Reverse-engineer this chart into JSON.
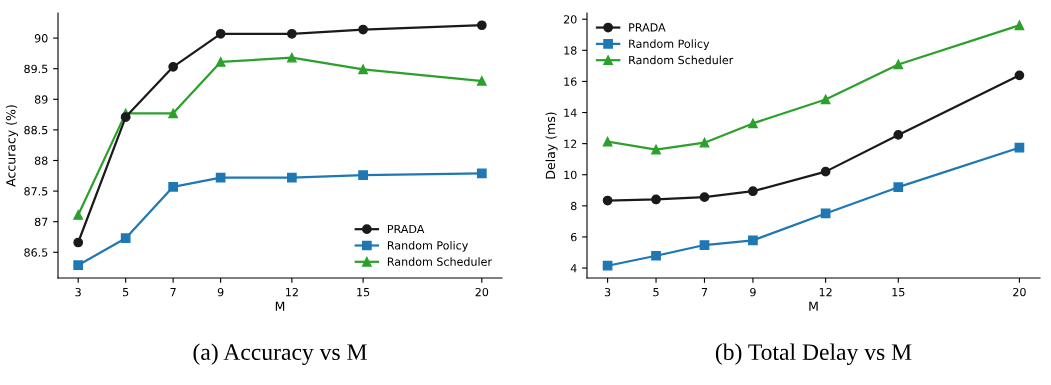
{
  "chart_data": [
    {
      "type": "line",
      "xlabel": "M",
      "ylabel": "Accuracy (%)",
      "x": [
        3,
        5,
        7,
        9,
        12,
        15,
        20
      ],
      "xlim": [
        2.15,
        20.85
      ],
      "xticks": [
        3,
        5,
        7,
        9,
        12,
        15,
        20
      ],
      "ylim": [
        86.08,
        90.41
      ],
      "yticks": [
        {
          "value": 86.5,
          "label": "86.5"
        },
        {
          "value": 87,
          "label": "87"
        },
        {
          "value": 87.5,
          "label": "87.5"
        },
        {
          "value": 88,
          "label": "88"
        },
        {
          "value": 88.5,
          "label": "88.5"
        },
        {
          "value": 89,
          "label": "89"
        },
        {
          "value": 89.5,
          "label": "89.5"
        },
        {
          "value": 90,
          "label": "90"
        }
      ],
      "grid": false,
      "legend": "bottom right",
      "annotations": [
        "(a) Accuracy vs M"
      ],
      "series": [
        {
          "name": "PRADA",
          "color": "#1a1a1a",
          "marker": "circle",
          "values": [
            86.66,
            88.71,
            89.53,
            90.07,
            90.07,
            90.14,
            90.21
          ]
        },
        {
          "name": "Random Policy",
          "color": "#1f77b4",
          "marker": "square",
          "values": [
            86.29,
            86.73,
            87.57,
            87.72,
            87.72,
            87.76,
            87.79
          ]
        },
        {
          "name": "Random Scheduler",
          "color": "#2ca02c",
          "marker": "triangle",
          "values": [
            87.11,
            88.77,
            88.77,
            89.61,
            89.68,
            89.49,
            89.3
          ]
        }
      ]
    },
    {
      "type": "line",
      "xlabel": "M",
      "ylabel": "Delay (ms)",
      "x": [
        3,
        5,
        7,
        9,
        12,
        15,
        20
      ],
      "xlim": [
        2.15,
        20.85
      ],
      "xticks": [
        3,
        5,
        7,
        9,
        12,
        15,
        20
      ],
      "ylim": [
        3.36,
        20.4
      ],
      "yticks": [
        4,
        6,
        8,
        10,
        12,
        14,
        16,
        18,
        20
      ],
      "grid": false,
      "legend": "top left",
      "annotations": [
        "(b) Total Delay vs M"
      ],
      "series": [
        {
          "name": "PRADA",
          "color": "#1a1a1a",
          "marker": "circle",
          "values": [
            8.34,
            8.41,
            8.56,
            8.94,
            10.2,
            12.56,
            16.39
          ]
        },
        {
          "name": "Random Policy",
          "color": "#1f77b4",
          "marker": "square",
          "values": [
            4.15,
            4.79,
            5.48,
            5.78,
            7.51,
            9.2,
            11.74
          ]
        },
        {
          "name": "Random Scheduler",
          "color": "#2ca02c",
          "marker": "triangle",
          "values": [
            12.13,
            11.62,
            12.06,
            13.3,
            14.84,
            17.09,
            19.61
          ]
        }
      ]
    }
  ]
}
